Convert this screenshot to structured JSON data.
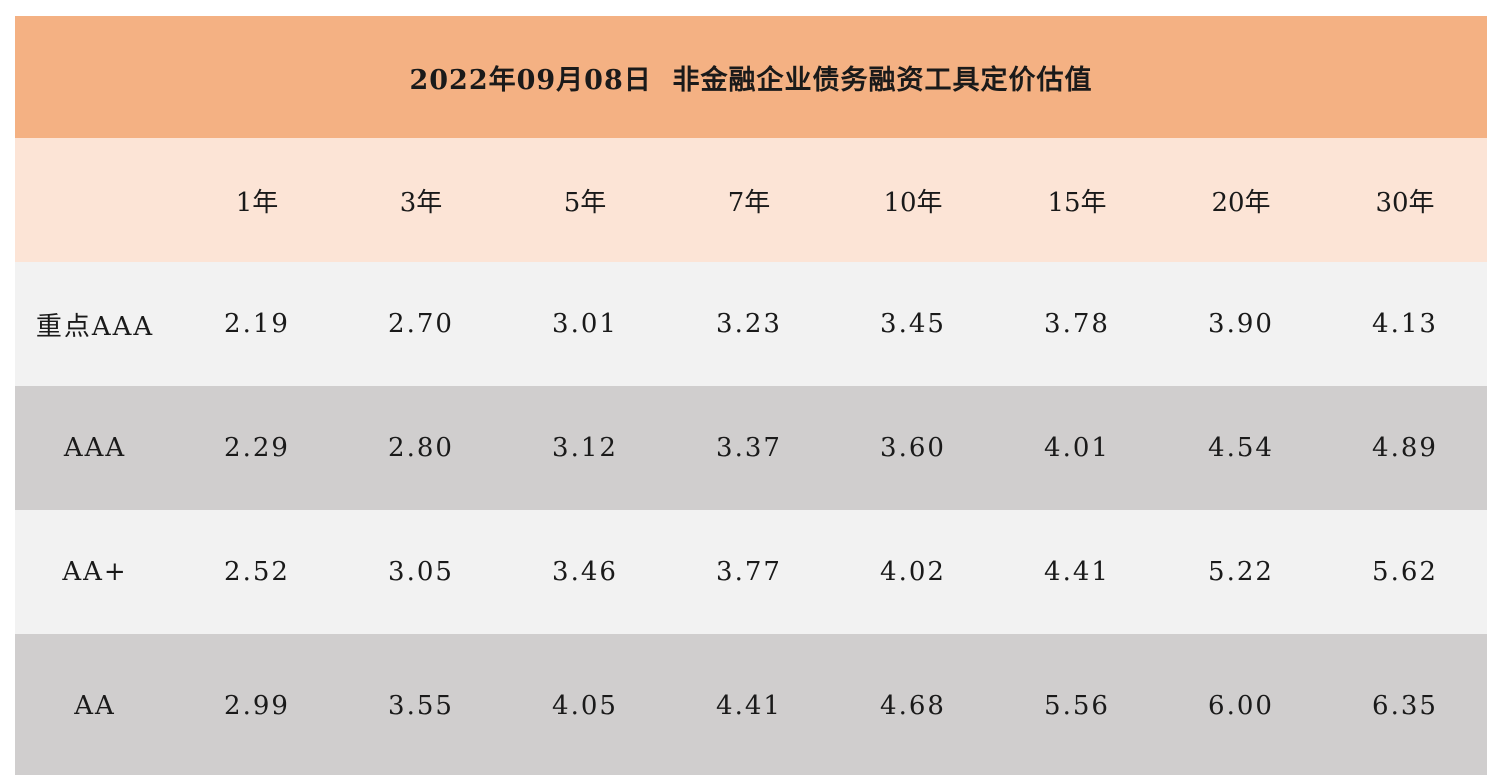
{
  "colors": {
    "title_bg": "#f4b183",
    "header_bg": "#fce4d6",
    "row_light": "#f2f2f2",
    "row_dark": "#d0cece"
  },
  "chart_data": {
    "type": "table",
    "title": "2022年09月08日  非金融企业债务融资工具定价估值",
    "columns": [
      "1年",
      "3年",
      "5年",
      "7年",
      "10年",
      "15年",
      "20年",
      "30年"
    ],
    "rows": [
      {
        "label": "重点AAA",
        "values": [
          "2.19",
          "2.70",
          "3.01",
          "3.23",
          "3.45",
          "3.78",
          "3.90",
          "4.13"
        ]
      },
      {
        "label": "AAA",
        "values": [
          "2.29",
          "2.80",
          "3.12",
          "3.37",
          "3.60",
          "4.01",
          "4.54",
          "4.89"
        ]
      },
      {
        "label": "AA+",
        "values": [
          "2.52",
          "3.05",
          "3.46",
          "3.77",
          "4.02",
          "4.41",
          "5.22",
          "5.62"
        ]
      },
      {
        "label": "AA",
        "values": [
          "2.99",
          "3.55",
          "4.05",
          "4.41",
          "4.68",
          "5.56",
          "6.00",
          "6.35"
        ]
      }
    ]
  }
}
